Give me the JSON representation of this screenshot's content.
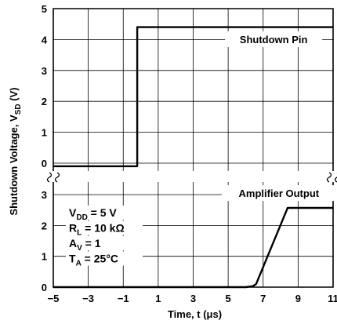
{
  "chart_data": {
    "type": "line",
    "xlabel": "Time, t (μs)",
    "ylabel": "Shutdown Voltage, V",
    "ylabel_sub": "SD",
    "ylabel_unit": "(V)",
    "xlim": [
      -5,
      11
    ],
    "x_ticks": [
      "−5",
      "−3",
      "−1",
      "1",
      "3",
      "5",
      "7",
      "9",
      "11"
    ],
    "upper_y_ticks": [
      "5",
      "4",
      "3",
      "2",
      "1",
      "0"
    ],
    "lower_y_ticks": [
      "3",
      "2",
      "1",
      "0"
    ],
    "grid": true,
    "axis_break": "between upper and lower panels",
    "conditions": [
      {
        "main": "V",
        "sub": "DD",
        "rest": " = 5 V"
      },
      {
        "main": "R",
        "sub": "L",
        "rest": " = 10 kΩ"
      },
      {
        "main": "A",
        "sub": "V",
        "rest": " = 1"
      },
      {
        "main": "T",
        "sub": "A",
        "rest": " = 25°C"
      }
    ],
    "series": [
      {
        "name": "Shutdown Pin",
        "panel": "upper",
        "points": [
          [
            -5,
            -0.1
          ],
          [
            -0.2,
            -0.1
          ],
          [
            -0.2,
            4.4
          ],
          [
            11,
            4.4
          ]
        ]
      },
      {
        "name": "Amplifier Output",
        "panel": "lower",
        "points": [
          [
            -5,
            0.0
          ],
          [
            6.0,
            0.0
          ],
          [
            6.4,
            0.03
          ],
          [
            6.6,
            0.1
          ],
          [
            8.4,
            2.57
          ],
          [
            11,
            2.57
          ]
        ]
      }
    ]
  }
}
